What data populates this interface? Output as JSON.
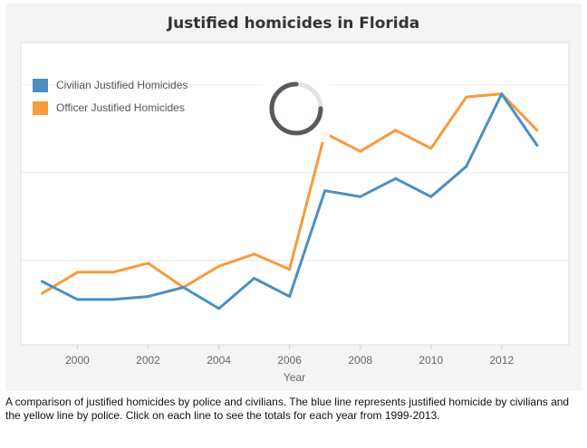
{
  "chart_data": {
    "type": "line",
    "title": "Justified homicides in Florida",
    "xlabel": "Year",
    "ylabel": "",
    "x": [
      1999,
      2000,
      2001,
      2002,
      2003,
      2004,
      2005,
      2006,
      2007,
      2008,
      2009,
      2010,
      2011,
      2012,
      2013
    ],
    "xticks": [
      "2000",
      "2002",
      "2004",
      "2006",
      "2008",
      "2010",
      "2012"
    ],
    "xlim": [
      1998.4,
      2013.9
    ],
    "ylim": [
      0,
      100
    ],
    "grid": true,
    "legend_position": "top-left",
    "series": [
      {
        "name": "Civilian Justified Homicides",
        "color": "#4a8fc3",
        "values": [
          21,
          15,
          15,
          16,
          19,
          12,
          22,
          16,
          51,
          49,
          55,
          49,
          59,
          83,
          66
        ]
      },
      {
        "name": "Officer Justified Homicides",
        "color": "#f79b3b",
        "values": [
          17,
          24,
          24,
          27,
          19,
          26,
          30,
          25,
          70,
          64,
          71,
          65,
          82,
          83,
          71
        ]
      }
    ]
  },
  "caption": "A comparison of justified homicides by police and civilians. The blue line represents justified homicide by civilians and the yellow line by police. Click on each line to see the totals for each year from 1999-2013."
}
